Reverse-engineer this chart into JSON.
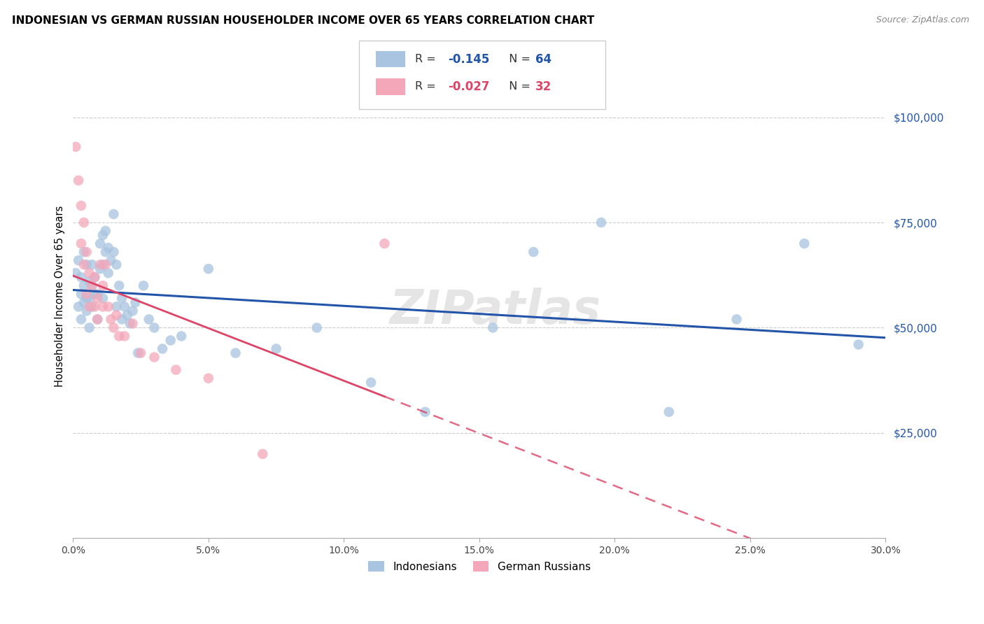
{
  "title": "INDONESIAN VS GERMAN RUSSIAN HOUSEHOLDER INCOME OVER 65 YEARS CORRELATION CHART",
  "source": "Source: ZipAtlas.com",
  "ylabel": "Householder Income Over 65 years",
  "legend_indonesian": "Indonesians",
  "legend_german_russian": "German Russians",
  "r_indonesian": -0.145,
  "n_indonesian": 64,
  "r_german_russian": -0.027,
  "n_german_russian": 32,
  "yticks": [
    25000,
    50000,
    75000,
    100000
  ],
  "ytick_labels": [
    "$25,000",
    "$50,000",
    "$75,000",
    "$100,000"
  ],
  "xlim": [
    0.0,
    0.3
  ],
  "ylim": [
    0,
    115000
  ],
  "color_indonesian": "#a8c4e0",
  "color_german_russian": "#f4a7b9",
  "line_color_indonesian": "#2255aa",
  "line_color_german_russian": "#dd4466",
  "watermark": "ZIPatlas",
  "indonesian_x": [
    0.001,
    0.002,
    0.002,
    0.003,
    0.003,
    0.003,
    0.004,
    0.004,
    0.004,
    0.005,
    0.005,
    0.005,
    0.006,
    0.006,
    0.006,
    0.007,
    0.007,
    0.007,
    0.008,
    0.008,
    0.009,
    0.009,
    0.01,
    0.01,
    0.011,
    0.011,
    0.011,
    0.012,
    0.012,
    0.013,
    0.013,
    0.014,
    0.015,
    0.015,
    0.016,
    0.016,
    0.017,
    0.018,
    0.018,
    0.019,
    0.02,
    0.021,
    0.022,
    0.023,
    0.024,
    0.026,
    0.028,
    0.03,
    0.033,
    0.036,
    0.04,
    0.05,
    0.06,
    0.075,
    0.09,
    0.11,
    0.13,
    0.155,
    0.17,
    0.195,
    0.22,
    0.245,
    0.27,
    0.29
  ],
  "indonesian_y": [
    63000,
    66000,
    55000,
    58000,
    62000,
    52000,
    60000,
    56000,
    68000,
    57000,
    54000,
    65000,
    61000,
    57000,
    50000,
    65000,
    60000,
    55000,
    58000,
    62000,
    58000,
    52000,
    70000,
    64000,
    72000,
    65000,
    57000,
    73000,
    68000,
    69000,
    63000,
    66000,
    77000,
    68000,
    65000,
    55000,
    60000,
    57000,
    52000,
    55000,
    53000,
    51000,
    54000,
    56000,
    44000,
    60000,
    52000,
    50000,
    45000,
    47000,
    48000,
    64000,
    44000,
    45000,
    50000,
    37000,
    30000,
    50000,
    68000,
    75000,
    30000,
    52000,
    70000,
    46000
  ],
  "german_russian_x": [
    0.001,
    0.002,
    0.003,
    0.003,
    0.004,
    0.004,
    0.005,
    0.005,
    0.006,
    0.006,
    0.007,
    0.008,
    0.008,
    0.009,
    0.009,
    0.01,
    0.011,
    0.011,
    0.012,
    0.013,
    0.014,
    0.015,
    0.016,
    0.017,
    0.019,
    0.022,
    0.025,
    0.03,
    0.038,
    0.05,
    0.07,
    0.115
  ],
  "german_russian_y": [
    93000,
    85000,
    79000,
    70000,
    75000,
    65000,
    68000,
    58000,
    63000,
    55000,
    60000,
    62000,
    55000,
    57000,
    52000,
    65000,
    60000,
    55000,
    65000,
    55000,
    52000,
    50000,
    53000,
    48000,
    48000,
    51000,
    44000,
    43000,
    40000,
    38000,
    20000,
    70000
  ]
}
